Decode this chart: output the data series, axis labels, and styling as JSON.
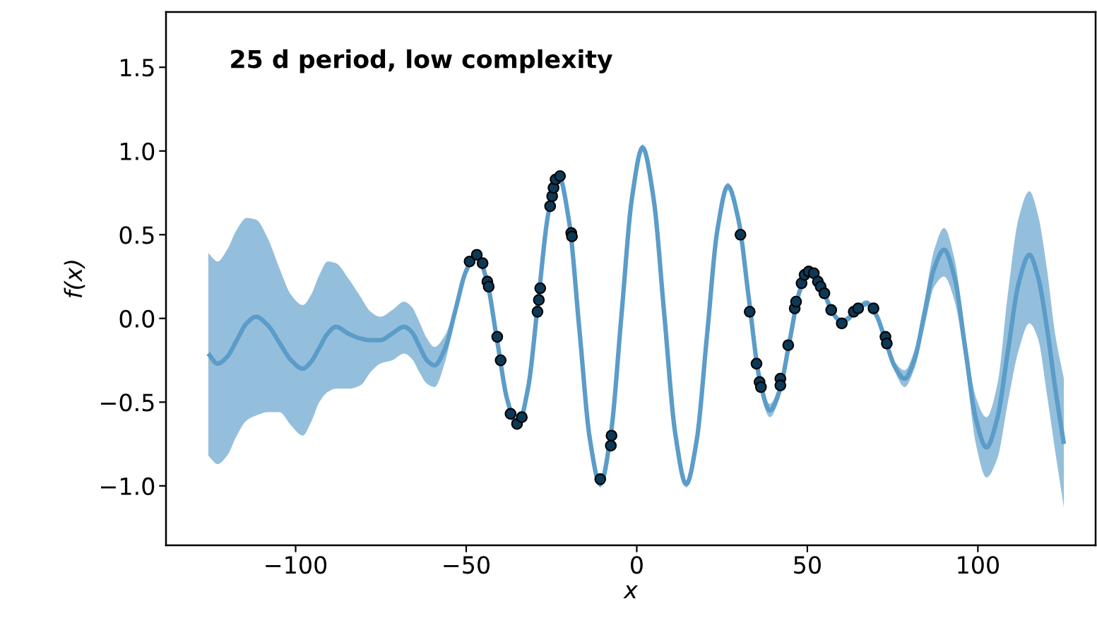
{
  "chart_data": {
    "type": "line",
    "title": "25 d period, low complexity",
    "xlabel": "x",
    "ylabel": "f(x)",
    "xlim": [
      -138,
      134.5
    ],
    "ylim": [
      -1.355,
      1.83
    ],
    "xticks": [
      {
        "value": -100,
        "label": "−100"
      },
      {
        "value": -50,
        "label": "−50"
      },
      0,
      50,
      100
    ],
    "yticks": [
      {
        "value": -1.0,
        "label": "−1.0"
      },
      {
        "value": -0.5,
        "label": "−0.5"
      },
      {
        "value": 0.0,
        "label": "0.0"
      },
      {
        "value": 0.5,
        "label": "0.5"
      },
      {
        "value": 1.0,
        "label": "1.0"
      },
      {
        "value": 1.5,
        "label": "1.5"
      }
    ],
    "grid": false,
    "line_style": "solid",
    "series": [
      {
        "color": "#5b9cc9",
        "x": [
          -125.6,
          -122.9,
          -120.1,
          -117.25,
          -114.4,
          -111.6,
          -108.2,
          -104.75,
          -101.3,
          -97.9,
          -95.5,
          -93.05,
          -90.6,
          -88.2,
          -84.6,
          -81,
          -78,
          -75.2,
          -71.7,
          -68.2,
          -66,
          -63.75,
          -61.5,
          -59.3,
          -56.2,
          -53.15,
          -50.1,
          -47,
          -44,
          -40.95,
          -37.9,
          -34.9,
          -31.9,
          -28.9,
          -25.9,
          -22.9,
          -19.85,
          -16.8,
          -13.75,
          -10.7,
          -7.6,
          -4.5,
          -1.4,
          1.7,
          4.9,
          8.1,
          11.3,
          14.5,
          17.55,
          20.6,
          23.65,
          26.7,
          29.8,
          32.85,
          35.9,
          39,
          41.9,
          44.8,
          47.7,
          50.6,
          53,
          55.35,
          57.7,
          60.1,
          62,
          63.75,
          65.5,
          67.4,
          70.2,
          72.95,
          75.7,
          78.5,
          81.4,
          84.3,
          87.2,
          90.1,
          93.2,
          96.3,
          99.4,
          102.5,
          105.65,
          108.8,
          111.95,
          115.1,
          117.6,
          120.2,
          122.7,
          125.2
        ],
        "values": [
          -0.21,
          -0.27,
          -0.23,
          -0.13,
          -0.03,
          0.01,
          -0.04,
          -0.145,
          -0.25,
          -0.3,
          -0.26,
          -0.175,
          -0.09,
          -0.05,
          -0.09,
          -0.12,
          -0.13,
          -0.13,
          -0.09,
          -0.05,
          -0.08,
          -0.165,
          -0.25,
          -0.28,
          -0.18,
          0.05,
          0.28,
          0.38,
          0.23,
          -0.13,
          -0.49,
          -0.64,
          -0.42,
          0.105,
          0.63,
          0.85,
          0.58,
          -0.07,
          -0.72,
          -0.99,
          -0.69,
          0.015,
          0.72,
          1.02,
          0.72,
          0.015,
          -0.69,
          -0.99,
          -0.73,
          -0.1,
          0.53,
          0.79,
          0.59,
          0.12,
          -0.35,
          -0.55,
          -0.43,
          -0.135,
          0.16,
          0.28,
          0.235,
          0.13,
          0.025,
          -0.02,
          0.0,
          0.035,
          0.07,
          0.09,
          0.02,
          -0.135,
          -0.29,
          -0.36,
          -0.245,
          0.025,
          0.3,
          0.41,
          0.24,
          -0.18,
          -0.6,
          -0.77,
          -0.6,
          -0.195,
          0.21,
          0.38,
          0.25,
          -0.05,
          -0.42,
          -0.75
        ],
        "upper": [
          0.39,
          0.34,
          0.41,
          0.53,
          0.6,
          0.59,
          0.48,
          0.3,
          0.14,
          0.08,
          0.14,
          0.26,
          0.34,
          0.33,
          0.24,
          0.13,
          0.04,
          0.01,
          0.05,
          0.1,
          0.07,
          -0.02,
          -0.12,
          -0.17,
          -0.1,
          0.08,
          0.3,
          0.4,
          0.25,
          -0.11,
          -0.47,
          -0.62,
          -0.4,
          0.125,
          0.65,
          0.87,
          0.6,
          -0.05,
          -0.7,
          -0.97,
          -0.67,
          0.035,
          0.74,
          1.04,
          0.74,
          0.035,
          -0.67,
          -0.97,
          -0.71,
          -0.08,
          0.55,
          0.81,
          0.61,
          0.14,
          -0.31,
          -0.51,
          -0.39,
          -0.115,
          0.18,
          0.3,
          0.255,
          0.15,
          0.045,
          0.0,
          0.02,
          0.055,
          0.09,
          0.11,
          0.04,
          -0.115,
          -0.26,
          -0.31,
          -0.19,
          0.1,
          0.41,
          0.54,
          0.35,
          -0.1,
          -0.47,
          -0.59,
          -0.4,
          0.15,
          0.6,
          0.76,
          0.62,
          0.3,
          -0.1,
          -0.36
        ],
        "lower": [
          -0.82,
          -0.87,
          -0.82,
          -0.7,
          -0.61,
          -0.58,
          -0.56,
          -0.56,
          -0.64,
          -0.7,
          -0.62,
          -0.5,
          -0.44,
          -0.42,
          -0.42,
          -0.4,
          -0.32,
          -0.27,
          -0.25,
          -0.21,
          -0.24,
          -0.32,
          -0.39,
          -0.41,
          -0.26,
          0.02,
          0.26,
          0.36,
          0.21,
          -0.15,
          -0.51,
          -0.66,
          -0.44,
          0.085,
          0.61,
          0.83,
          0.56,
          -0.09,
          -0.74,
          -1.01,
          -0.71,
          -0.005,
          0.7,
          1.0,
          0.7,
          -0.005,
          -0.71,
          -1.01,
          -0.75,
          -0.12,
          0.51,
          0.77,
          0.57,
          0.1,
          -0.39,
          -0.59,
          -0.47,
          -0.155,
          0.14,
          0.26,
          0.215,
          0.11,
          0.005,
          -0.04,
          -0.02,
          0.015,
          0.05,
          0.07,
          0.0,
          -0.155,
          -0.32,
          -0.41,
          -0.3,
          -0.05,
          0.19,
          0.25,
          0.1,
          -0.27,
          -0.75,
          -0.95,
          -0.84,
          -0.5,
          -0.19,
          -0.03,
          -0.12,
          -0.45,
          -0.8,
          -1.13
        ]
      },
      {
        "type": "scatter",
        "color": "#0d3957",
        "marker": "circle",
        "x": [
          -49,
          -46.9,
          -45.2,
          -43.8,
          -43.4,
          -40.9,
          -39.9,
          -37,
          -35.1,
          -33.7,
          -29.1,
          -28.7,
          -28.3,
          -25.4,
          -24.8,
          -24.4,
          -23.8,
          -22.5,
          -19.2,
          -19,
          -10.7,
          -7.4,
          -7.6,
          30.4,
          33.1,
          35.1,
          36,
          36.4,
          42.1,
          42.1,
          44.4,
          46.3,
          46.7,
          48.3,
          49.2,
          50.4,
          51.9,
          53.1,
          53.9,
          55,
          57,
          60.1,
          63.6,
          64.9,
          69.4,
          72.9,
          73.3
        ],
        "values": [
          0.34,
          0.38,
          0.33,
          0.22,
          0.19,
          -0.11,
          -0.25,
          -0.57,
          -0.63,
          -0.59,
          0.04,
          0.11,
          0.18,
          0.67,
          0.73,
          0.78,
          0.83,
          0.85,
          0.51,
          0.49,
          -0.96,
          -0.7,
          -0.76,
          0.5,
          0.04,
          -0.27,
          -0.38,
          -0.41,
          -0.36,
          -0.4,
          -0.16,
          0.06,
          0.1,
          0.21,
          0.26,
          0.28,
          0.27,
          0.22,
          0.19,
          0.15,
          0.05,
          -0.03,
          0.04,
          0.06,
          0.06,
          -0.11,
          -0.15
        ]
      }
    ]
  }
}
